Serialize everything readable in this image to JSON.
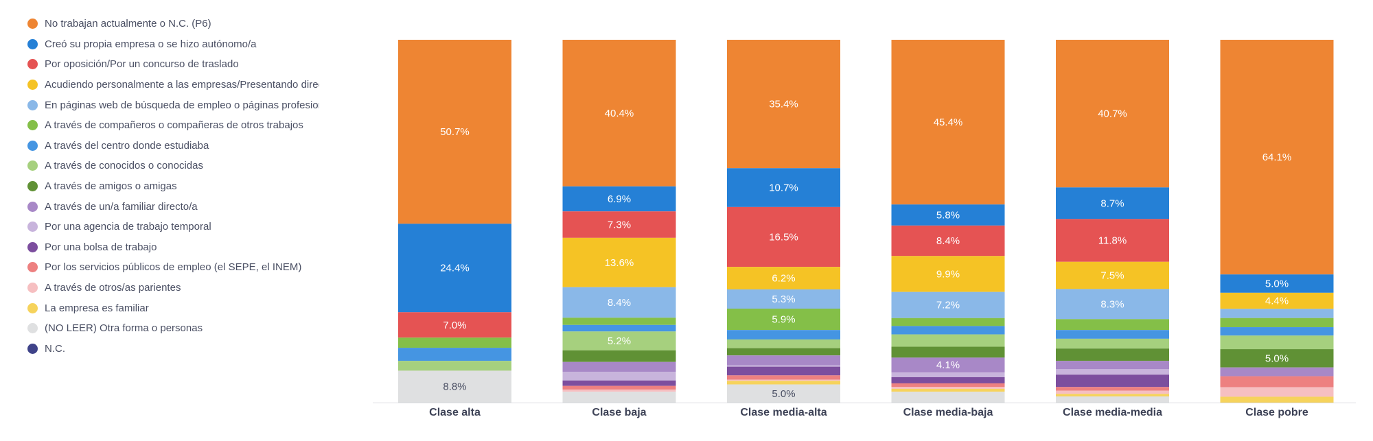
{
  "chart_data": {
    "type": "bar",
    "stacked": true,
    "normalized": true,
    "categories": [
      "Clase alta",
      "Clase baja",
      "Clase media-alta",
      "Clase media-baja",
      "Clase media-media",
      "Clase pobre"
    ],
    "series": [
      {
        "name": "No trabajan actualmente o N.C. (P6)",
        "color": "#ee8533",
        "values": [
          50.7,
          40.4,
          35.4,
          45.4,
          40.7,
          64.1
        ]
      },
      {
        "name": "Creó su propia empresa o se hizo autónomo/a",
        "color": "#2580d6",
        "values": [
          24.4,
          6.9,
          10.7,
          5.8,
          8.7,
          5.0
        ]
      },
      {
        "name": "Por oposición/Por un concurso de traslado",
        "color": "#e55353",
        "values": [
          7.0,
          7.3,
          16.5,
          8.4,
          11.8,
          0
        ]
      },
      {
        "name": "Acudiendo personalmente a las empresas/Presentando directamente su currículum",
        "color": "#f5c325",
        "values": [
          0,
          13.6,
          6.2,
          9.9,
          7.5,
          4.4
        ]
      },
      {
        "name": "En páginas web de búsqueda de empleo o páginas profesionales",
        "color": "#8ab8e8",
        "values": [
          0,
          8.4,
          5.3,
          7.2,
          8.3,
          2.5
        ]
      },
      {
        "name": "A través de compañeros o compañeras de otros trabajos",
        "color": "#84bf48",
        "values": [
          2.8,
          2.0,
          5.9,
          2.2,
          3.0,
          2.5
        ]
      },
      {
        "name": "A través del centro donde estudiaba",
        "color": "#4595e2",
        "values": [
          3.6,
          1.8,
          2.6,
          2.3,
          2.4,
          2.3
        ]
      },
      {
        "name": "A través de conocidos o conocidas",
        "color": "#a6d07e",
        "values": [
          2.7,
          5.2,
          2.4,
          3.4,
          2.7,
          3.7
        ]
      },
      {
        "name": "A través de amigos o amigas",
        "color": "#609135",
        "values": [
          0,
          3.2,
          2.0,
          3.0,
          3.4,
          5.0
        ]
      },
      {
        "name": "A través de un/a familiar directo/a",
        "color": "#a888c7",
        "values": [
          0,
          2.7,
          2.7,
          4.1,
          2.3,
          2.4
        ]
      },
      {
        "name": "Por una agencia de trabajo temporal",
        "color": "#c8b4dc",
        "values": [
          0,
          2.4,
          0.4,
          1.3,
          1.5,
          0
        ]
      },
      {
        "name": "Por una bolsa de trabajo",
        "color": "#7c4e9e",
        "values": [
          0,
          1.5,
          2.4,
          1.7,
          3.4,
          0
        ]
      },
      {
        "name": "Por los servicios públicos de empleo (el SEPE, el INEM)",
        "color": "#ed8080",
        "values": [
          0,
          1.0,
          1.2,
          1.0,
          1.0,
          3.0
        ]
      },
      {
        "name": "A través de otros/as parientes",
        "color": "#f6bfc1",
        "values": [
          0,
          0.6,
          0.3,
          0.5,
          0.9,
          2.6
        ]
      },
      {
        "name": "La empresa es familiar",
        "color": "#f6d35c",
        "values": [
          0,
          0,
          1.0,
          0.8,
          0.7,
          1.6
        ]
      },
      {
        "name": "(NO LEER) Otra forma o personas",
        "color": "#dfe0e1",
        "values": [
          8.8,
          3.0,
          5.0,
          3.0,
          1.7,
          0
        ]
      },
      {
        "name": "N.C.",
        "color": "#3f4389",
        "values": [
          0,
          0,
          0,
          0,
          0,
          0
        ]
      }
    ],
    "data_labels": [
      [
        "50.7%",
        "24.4%",
        "7.0%",
        "",
        "",
        "",
        "",
        "",
        "",
        "",
        "",
        "",
        "",
        "",
        "",
        "8.8%",
        ""
      ],
      [
        "40.4%",
        "6.9%",
        "7.3%",
        "13.6%",
        "8.4%",
        "",
        "",
        "5.2%",
        "",
        "",
        "",
        "",
        "",
        "",
        "",
        "",
        ""
      ],
      [
        "35.4%",
        "10.7%",
        "16.5%",
        "6.2%",
        "5.3%",
        "5.9%",
        "",
        "",
        "",
        "",
        "",
        "",
        "",
        "",
        "",
        "5.0%",
        ""
      ],
      [
        "45.4%",
        "5.8%",
        "8.4%",
        "9.9%",
        "7.2%",
        "",
        "",
        "",
        "",
        "4.1%",
        "",
        "",
        "",
        "",
        "",
        "",
        ""
      ],
      [
        "40.7%",
        "8.7%",
        "11.8%",
        "7.5%",
        "8.3%",
        "",
        "",
        "",
        "",
        "",
        "",
        "",
        "",
        "",
        "",
        "",
        ""
      ],
      [
        "64.1%",
        "5.0%",
        "",
        "4.4%",
        "",
        "",
        "",
        "",
        "5.0%",
        "",
        "",
        "",
        "",
        "",
        "",
        "",
        ""
      ]
    ],
    "legend_position": "left",
    "grid": false
  }
}
